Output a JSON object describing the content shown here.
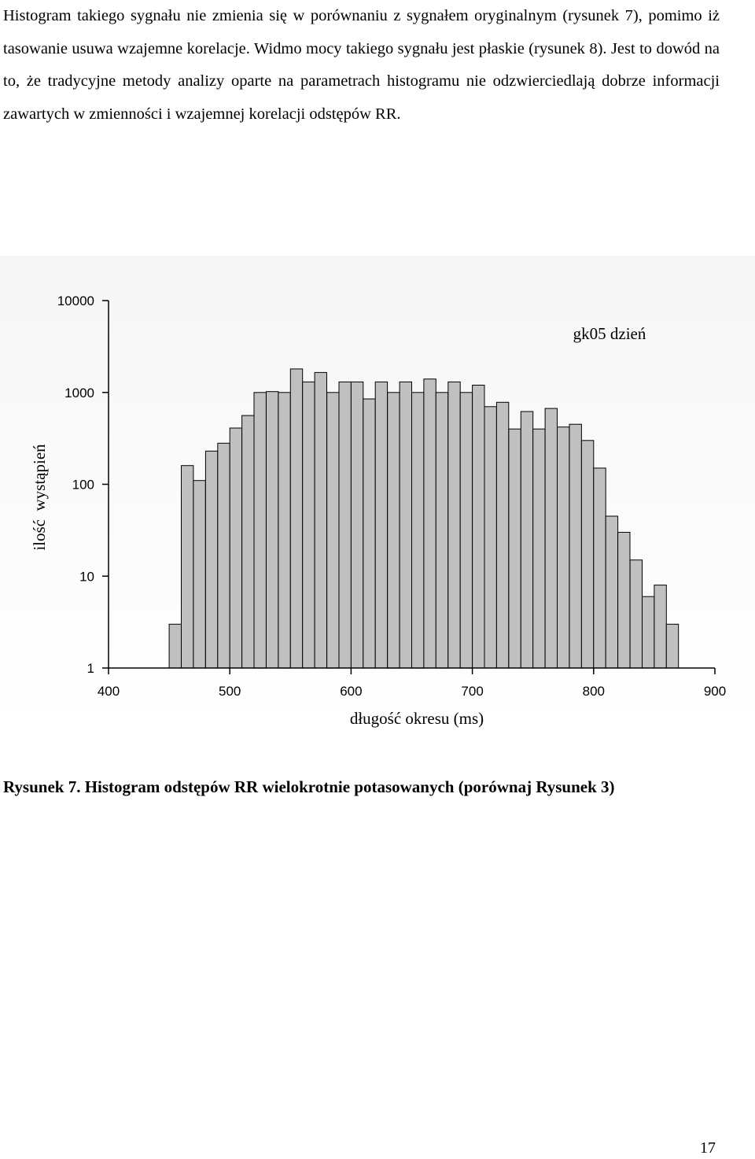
{
  "paragraph": "Histogram takiego sygnału nie zmienia się w porównaniu z sygnałem oryginalnym (rysunek 7), pomimo iż tasowanie usuwa wzajemne korelacje. Widmo mocy takiego sygnału jest płaskie (rysunek 8). Jest to dowód na to, że tradycyjne metody analizy oparte na parametrach histogramu nie odzwierciedlają dobrze informacji zawartych w zmienności i wzajemnej korelacji odstępów RR.",
  "chart_data": {
    "type": "bar",
    "title": "gk05 dzień",
    "xlabel": "długość okresu (ms)",
    "ylabel": "ilość  wystąpień",
    "y_scale": "log",
    "xlim": [
      400,
      900
    ],
    "ylim": [
      1,
      10000
    ],
    "x_ticks": [
      "400",
      "500",
      "600",
      "700",
      "800",
      "900"
    ],
    "y_ticks": [
      "1",
      "10",
      "100",
      "1000",
      "10000"
    ],
    "bin_width": 10,
    "x": [
      450,
      460,
      470,
      480,
      490,
      500,
      510,
      520,
      530,
      540,
      550,
      560,
      570,
      580,
      590,
      600,
      610,
      620,
      630,
      640,
      650,
      660,
      670,
      680,
      690,
      700,
      710,
      720,
      730,
      740,
      750,
      760,
      770,
      780,
      790,
      800,
      810,
      820,
      830,
      840,
      850,
      860
    ],
    "values": [
      3,
      160,
      110,
      230,
      280,
      410,
      560,
      1000,
      1020,
      1000,
      1800,
      1300,
      1650,
      1000,
      1300,
      1300,
      850,
      1300,
      1000,
      1300,
      1000,
      1400,
      1000,
      1300,
      1000,
      1200,
      700,
      780,
      400,
      620,
      400,
      670,
      420,
      450,
      300,
      150,
      45,
      30,
      15,
      6,
      8,
      3
    ],
    "grid": false,
    "bar_color": "#c0c0c0"
  },
  "caption": "Rysunek 7. Histogram odstępów RR wielokrotnie potasowanych (porównaj Rysunek 3)",
  "page_number": "17"
}
